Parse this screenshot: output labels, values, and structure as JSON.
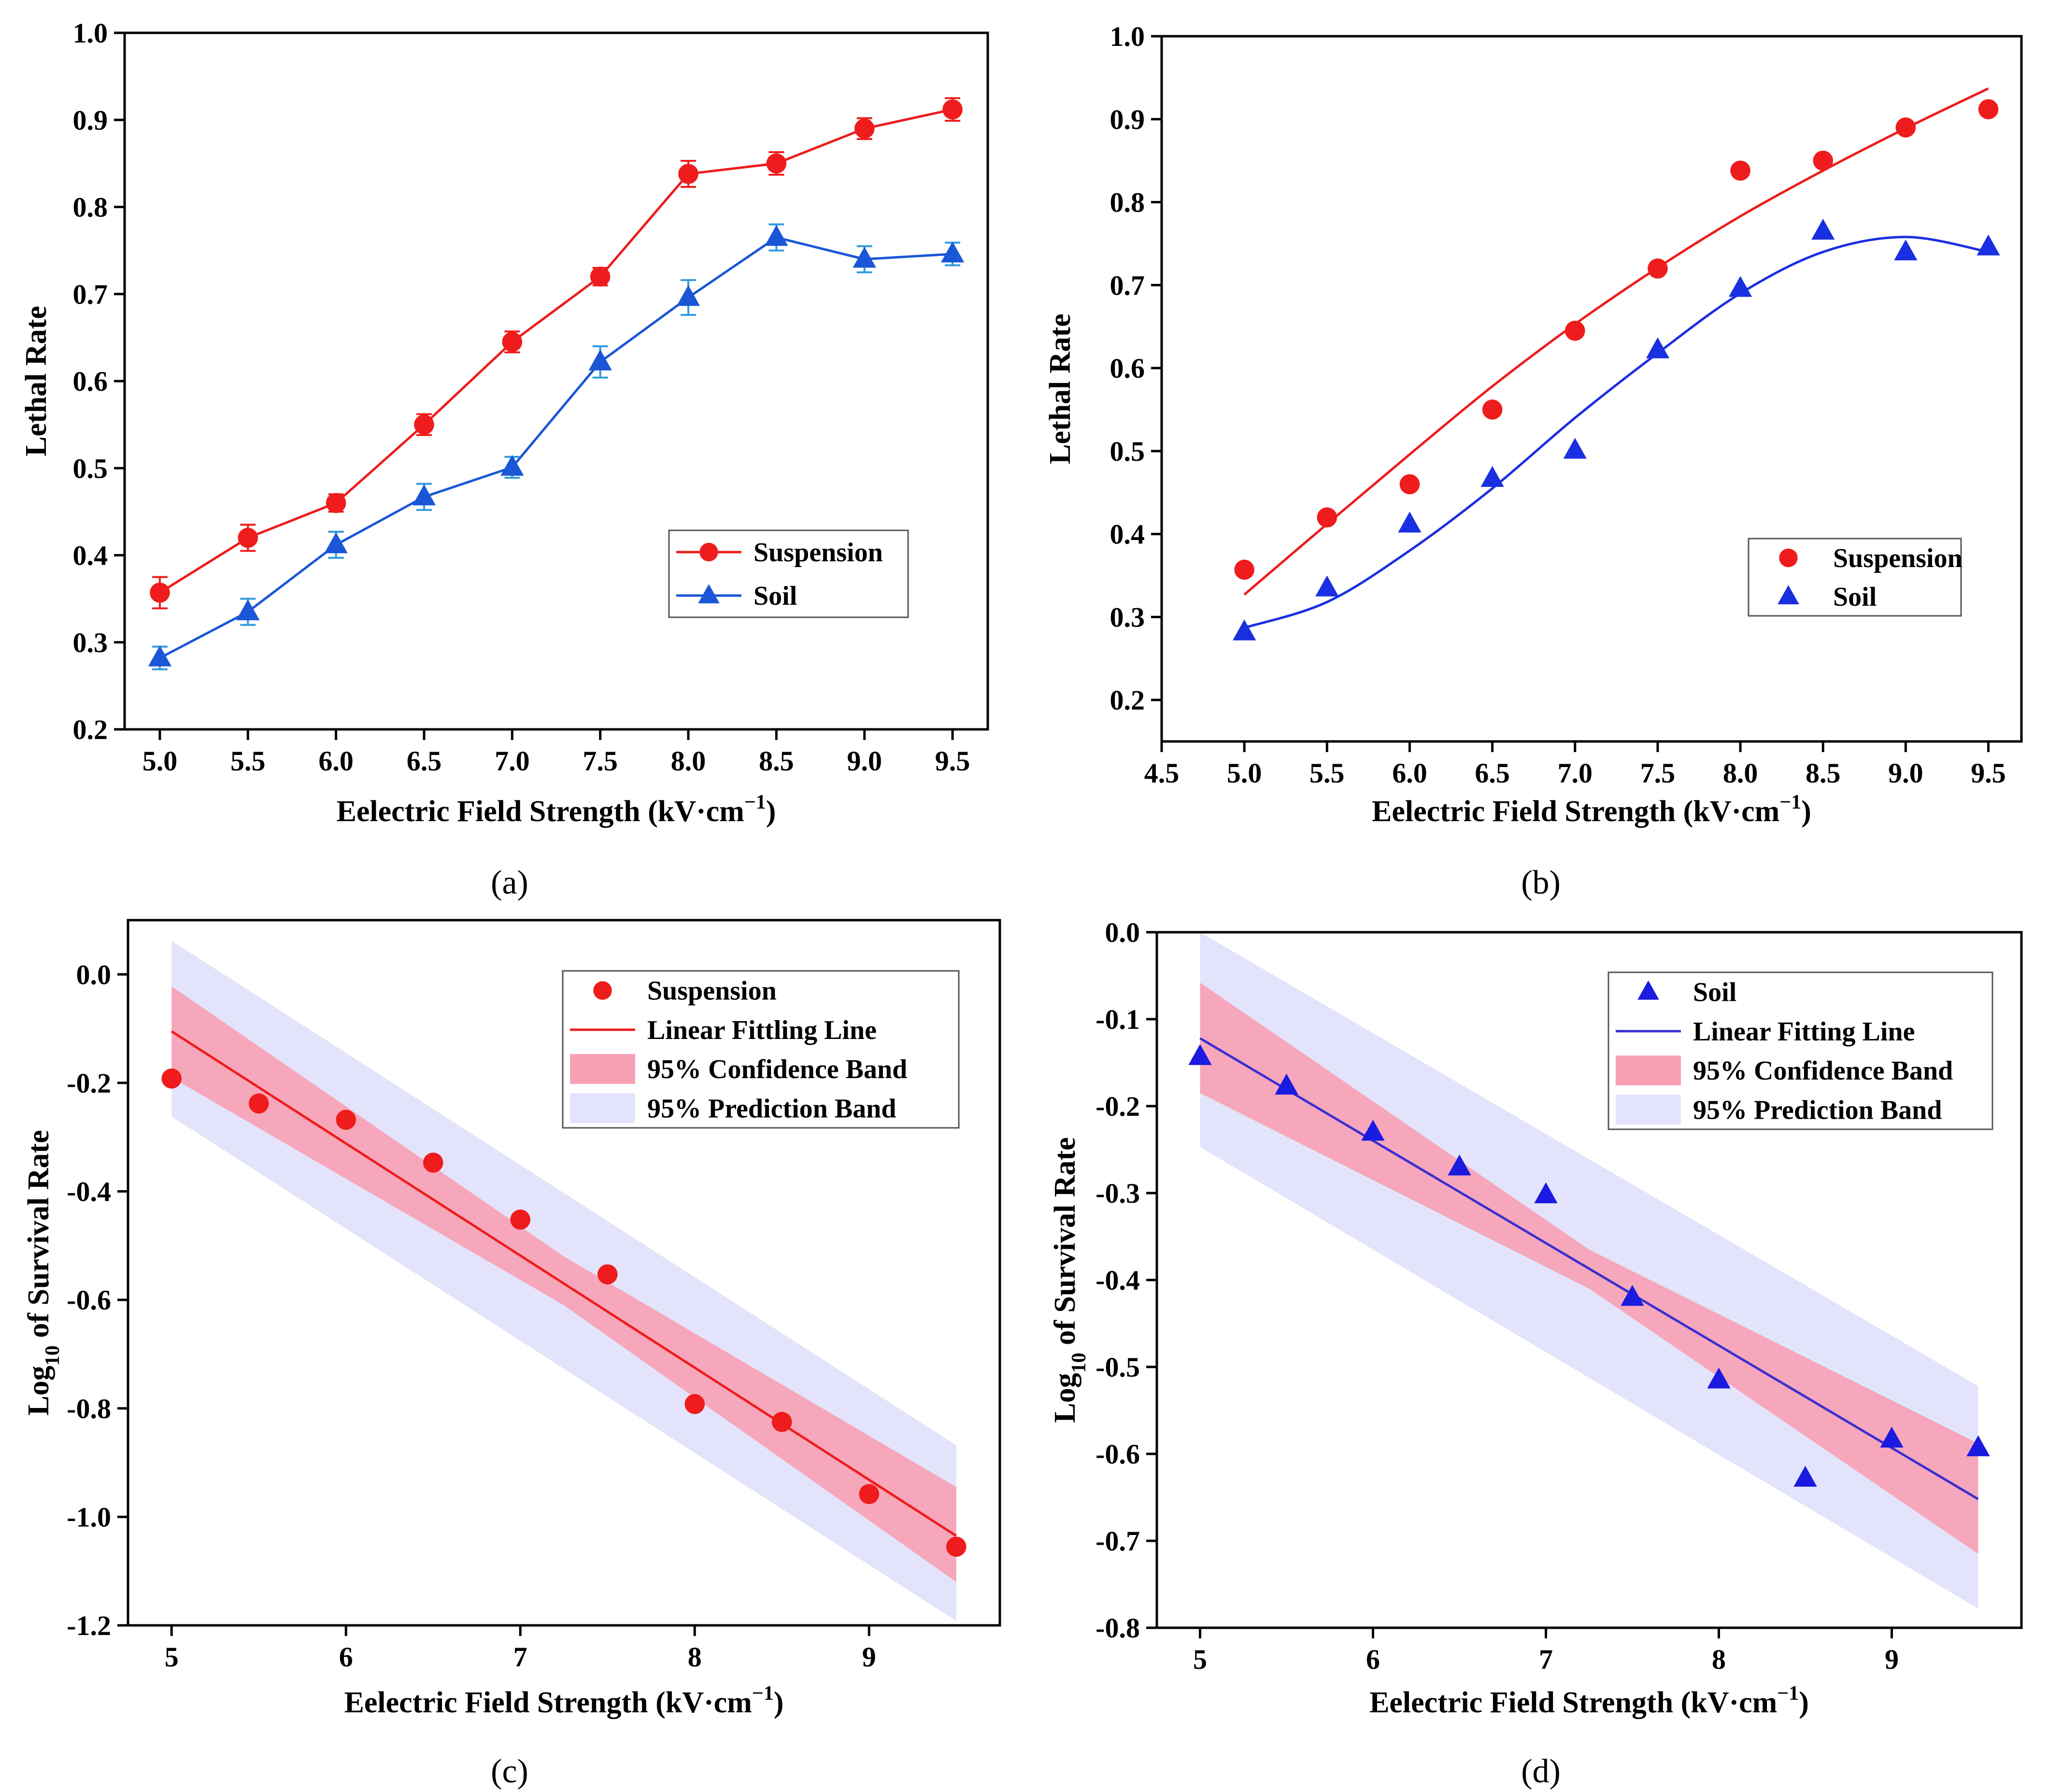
{
  "chart_data": [
    {
      "panel": "a",
      "caption": "(a)",
      "type": "line",
      "xlabel": "Eelectric Field Strength (kV·cm",
      "xlabel_sup": "−1",
      "xlabel_end": ")",
      "ylabel": "Lethal Rate",
      "xlim": [
        4.8,
        9.7
      ],
      "ylim": [
        0.2,
        1.0
      ],
      "xticks": [
        5.0,
        5.5,
        6.0,
        6.5,
        7.0,
        7.5,
        8.0,
        8.5,
        9.0,
        9.5
      ],
      "yticks": [
        0.2,
        0.3,
        0.4,
        0.5,
        0.6,
        0.7,
        0.8,
        0.9,
        1.0
      ],
      "xtick_labels": [
        "5.0",
        "5.5",
        "6.0",
        "6.5",
        "7.0",
        "7.5",
        "8.0",
        "8.5",
        "9.0",
        "9.5"
      ],
      "ytick_labels": [
        "0.2",
        "0.3",
        "0.4",
        "0.5",
        "0.6",
        "0.7",
        "0.8",
        "0.9",
        "1.0"
      ],
      "x": [
        5.0,
        5.5,
        6.0,
        6.5,
        7.0,
        7.5,
        8.0,
        8.5,
        9.0,
        9.5
      ],
      "legend": "bottom-right",
      "series": [
        {
          "name": "Suspension",
          "marker": "circle",
          "color": "#ee1c1c",
          "values": [
            0.357,
            0.42,
            0.46,
            0.55,
            0.645,
            0.72,
            0.838,
            0.85,
            0.89,
            0.912
          ],
          "errors": [
            0.018,
            0.015,
            0.01,
            0.012,
            0.012,
            0.01,
            0.015,
            0.013,
            0.012,
            0.013
          ]
        },
        {
          "name": "Soil",
          "marker": "triangle",
          "color": "#1a56d6",
          "error_color": "#2f9ae0",
          "values": [
            0.282,
            0.335,
            0.412,
            0.467,
            0.501,
            0.622,
            0.696,
            0.765,
            0.74,
            0.746
          ],
          "errors": [
            0.013,
            0.015,
            0.015,
            0.015,
            0.012,
            0.018,
            0.02,
            0.015,
            0.015,
            0.013
          ]
        }
      ]
    },
    {
      "panel": "b",
      "caption": "(b)",
      "type": "scatter",
      "xlabel": "Eelectric Field Strength (kV·cm",
      "xlabel_sup": "−1",
      "xlabel_end": ")",
      "ylabel": "Lethal Rate",
      "xlim": [
        4.5,
        9.7
      ],
      "ylim": [
        0.15,
        1.0
      ],
      "xticks": [
        4.5,
        5.0,
        5.5,
        6.0,
        6.5,
        7.0,
        7.5,
        8.0,
        8.5,
        9.0,
        9.5
      ],
      "yticks": [
        0.2,
        0.3,
        0.4,
        0.5,
        0.6,
        0.7,
        0.8,
        0.9,
        1.0
      ],
      "xtick_labels": [
        "4.5",
        "5.0",
        "5.5",
        "6.0",
        "6.5",
        "7.0",
        "7.5",
        "8.0",
        "8.5",
        "9.0",
        "9.5"
      ],
      "ytick_labels": [
        "0.2",
        "0.3",
        "0.4",
        "0.5",
        "0.6",
        "0.7",
        "0.8",
        "0.9",
        "1.0"
      ],
      "x": [
        5.0,
        5.5,
        6.0,
        6.5,
        7.0,
        7.5,
        8.0,
        8.5,
        9.0,
        9.5
      ],
      "legend": "bottom-right",
      "series": [
        {
          "name": "Suspension",
          "marker": "circle",
          "color": "#ee1c1c",
          "values": [
            0.357,
            0.42,
            0.46,
            0.55,
            0.645,
            0.72,
            0.838,
            0.85,
            0.89,
            0.912
          ],
          "fit_x": [
            5.0,
            5.5,
            6.0,
            6.5,
            7.0,
            7.5,
            8.0,
            8.5,
            9.0,
            9.5
          ],
          "fit_y": [
            0.327,
            0.412,
            0.496,
            0.578,
            0.653,
            0.721,
            0.783,
            0.838,
            0.889,
            0.937
          ]
        },
        {
          "name": "Soil",
          "marker": "triangle",
          "color": "#1a2fe0",
          "values": [
            0.282,
            0.335,
            0.412,
            0.467,
            0.501,
            0.622,
            0.696,
            0.765,
            0.74,
            0.746
          ],
          "fit_x": [
            5.0,
            5.5,
            6.0,
            6.5,
            7.0,
            7.5,
            8.0,
            8.5,
            9.0,
            9.5
          ],
          "fit_y": [
            0.287,
            0.318,
            0.38,
            0.455,
            0.54,
            0.618,
            0.69,
            0.74,
            0.758,
            0.74
          ]
        }
      ]
    },
    {
      "panel": "c",
      "caption": "(c)",
      "type": "scatter",
      "xlabel": "Eelectric Field Strength (kV·cm",
      "xlabel_sup": "−1",
      "xlabel_end": ")",
      "ylabel_pre": "Log",
      "ylabel_sub": "10",
      "ylabel_post": " of Survival Rate",
      "xlim": [
        4.75,
        9.75
      ],
      "ylim": [
        -1.2,
        0.1
      ],
      "xticks": [
        5,
        6,
        7,
        8,
        9
      ],
      "yticks": [
        -1.2,
        -1.0,
        -0.8,
        -0.6,
        -0.4,
        -0.2,
        0.0
      ],
      "xtick_labels": [
        "5",
        "6",
        "7",
        "8",
        "9"
      ],
      "ytick_labels": [
        "-1.2",
        "-1.0",
        "-0.8",
        "-0.6",
        "-0.4",
        "-0.2",
        "0.0"
      ],
      "x": [
        5.0,
        5.5,
        6.0,
        6.5,
        7.0,
        7.5,
        8.0,
        8.5,
        9.0,
        9.5
      ],
      "legend": "top-right",
      "series": [
        {
          "name": "Suspension",
          "marker": "circle",
          "color": "#ee1c1c",
          "values": [
            -0.192,
            -0.238,
            -0.268,
            -0.347,
            -0.452,
            -0.553,
            -0.792,
            -0.825,
            -0.958,
            -1.055
          ]
        }
      ],
      "fit": {
        "name": "Linear Fittling Line",
        "color": "#ee1c1c",
        "x": [
          5.0,
          9.5
        ],
        "y": [
          -0.105,
          -1.035
        ]
      },
      "confidence_band": {
        "name": "95% Confidence Band",
        "color": "#f7a0b4",
        "x": [
          5.0,
          7.25,
          9.5
        ],
        "upper": [
          -0.022,
          -0.52,
          -0.945
        ],
        "lower": [
          -0.19,
          -0.61,
          -1.12
        ]
      },
      "prediction_band": {
        "name": "95% Prediction Band",
        "color": "#e3e4fb",
        "x": [
          5.0,
          9.5
        ],
        "upper": [
          0.062,
          -0.868
        ],
        "lower": [
          -0.262,
          -1.192
        ]
      }
    },
    {
      "panel": "d",
      "caption": "(d)",
      "type": "scatter",
      "xlabel": "Eelectric Field Strength (kV·cm",
      "xlabel_sup": "−1",
      "xlabel_end": ")",
      "ylabel_pre": "Log",
      "ylabel_sub": "10",
      "ylabel_post": " of Survival Rate",
      "xlim": [
        4.75,
        9.75
      ],
      "ylim": [
        -0.8,
        0.0
      ],
      "xticks": [
        5,
        6,
        7,
        8,
        9
      ],
      "yticks": [
        -0.8,
        -0.7,
        -0.6,
        -0.5,
        -0.4,
        -0.3,
        -0.2,
        -0.1,
        0.0
      ],
      "xtick_labels": [
        "5",
        "6",
        "7",
        "8",
        "9"
      ],
      "ytick_labels": [
        "-0.8",
        "-0.7",
        "-0.6",
        "-0.5",
        "-0.4",
        "-0.3",
        "-0.2",
        "-0.1",
        "0.0"
      ],
      "x": [
        5.0,
        5.5,
        6.0,
        6.5,
        7.0,
        7.5,
        8.0,
        8.5,
        9.0,
        9.5
      ],
      "legend": "top-right",
      "series": [
        {
          "name": "Soil",
          "marker": "triangle",
          "color": "#1a1ae0",
          "values": [
            -0.143,
            -0.177,
            -0.23,
            -0.27,
            -0.302,
            -0.42,
            -0.515,
            -0.628,
            -0.583,
            -0.593
          ]
        }
      ],
      "fit": {
        "name": "Linear Fitting Line",
        "color": "#3a2fd0",
        "x": [
          5.0,
          9.5
        ],
        "y": [
          -0.122,
          -0.652
        ]
      },
      "confidence_band": {
        "name": "95% Confidence Band",
        "color": "#f7a0b4",
        "x": [
          5.0,
          7.25,
          9.5
        ],
        "upper": [
          -0.058,
          -0.365,
          -0.588
        ],
        "lower": [
          -0.185,
          -0.41,
          -0.715
        ]
      },
      "prediction_band": {
        "name": "95% Prediction Band",
        "color": "#e3e4fb",
        "x": [
          5.0,
          9.5
        ],
        "upper": [
          0.0,
          -0.522
        ],
        "lower": [
          -0.247,
          -0.778
        ]
      }
    }
  ]
}
